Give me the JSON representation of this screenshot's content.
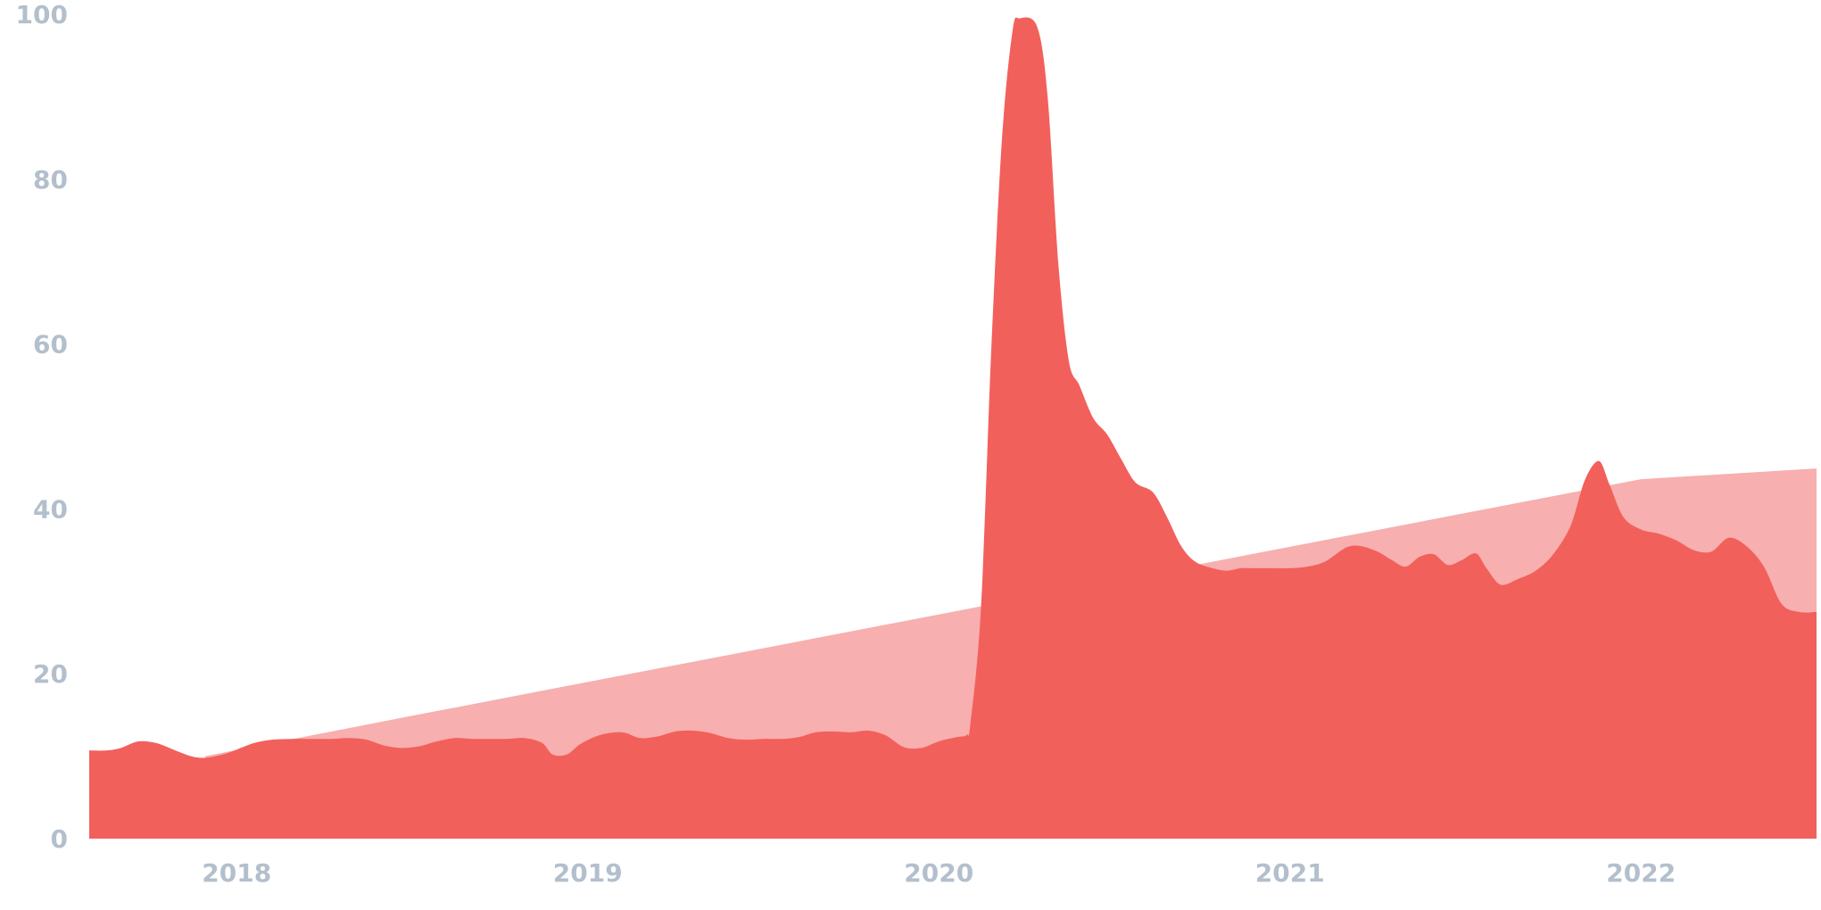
{
  "chart_data": {
    "type": "area",
    "title": "",
    "xlabel": "",
    "ylabel": "",
    "ylim": [
      0,
      100
    ],
    "xlim": [
      2017.58,
      2022.5
    ],
    "y_ticks": [
      "0",
      "20",
      "40",
      "60",
      "80",
      "100"
    ],
    "x_ticks": [
      "2018",
      "2019",
      "2020",
      "2021",
      "2022"
    ],
    "grid": false,
    "legend": "none",
    "colors": {
      "main_area": "#f2605c",
      "trend_area": "#f7afaf",
      "tick_text": "#b3bfcc"
    },
    "series": [
      {
        "values": [
          [
            2017.58,
            10.7
          ],
          [
            2017.63,
            10.7
          ],
          [
            2017.67,
            11.0
          ],
          [
            2017.72,
            11.8
          ],
          [
            2017.77,
            11.6
          ],
          [
            2017.82,
            10.8
          ],
          [
            2017.87,
            10.0
          ],
          [
            2017.91,
            9.8
          ],
          [
            2017.96,
            10.2
          ],
          [
            2018.0,
            10.8
          ],
          [
            2018.05,
            11.6
          ],
          [
            2018.1,
            12.0
          ],
          [
            2018.16,
            12.1
          ],
          [
            2018.21,
            12.1
          ],
          [
            2018.27,
            12.1
          ],
          [
            2018.32,
            12.2
          ],
          [
            2018.37,
            12.0
          ],
          [
            2018.42,
            11.3
          ],
          [
            2018.47,
            11.0
          ],
          [
            2018.52,
            11.2
          ],
          [
            2018.57,
            11.8
          ],
          [
            2018.62,
            12.2
          ],
          [
            2018.67,
            12.1
          ],
          [
            2018.72,
            12.1
          ],
          [
            2018.77,
            12.1
          ],
          [
            2018.82,
            12.2
          ],
          [
            2018.87,
            11.6
          ],
          [
            2018.9,
            10.2
          ],
          [
            2018.94,
            10.2
          ],
          [
            2018.98,
            11.5
          ],
          [
            2019.03,
            12.5
          ],
          [
            2019.08,
            12.9
          ],
          [
            2019.11,
            12.8
          ],
          [
            2019.15,
            12.2
          ],
          [
            2019.2,
            12.4
          ],
          [
            2019.25,
            13.0
          ],
          [
            2019.3,
            13.1
          ],
          [
            2019.35,
            12.8
          ],
          [
            2019.4,
            12.2
          ],
          [
            2019.45,
            12.0
          ],
          [
            2019.5,
            12.1
          ],
          [
            2019.55,
            12.1
          ],
          [
            2019.6,
            12.3
          ],
          [
            2019.65,
            12.9
          ],
          [
            2019.7,
            13.0
          ],
          [
            2019.75,
            12.9
          ],
          [
            2019.8,
            13.1
          ],
          [
            2019.85,
            12.5
          ],
          [
            2019.9,
            11.1
          ],
          [
            2019.95,
            11.0
          ],
          [
            2020.0,
            11.8
          ],
          [
            2020.05,
            12.3
          ],
          [
            2020.08,
            12.6
          ],
          [
            2020.09,
            14.0
          ],
          [
            2020.12,
            28.0
          ],
          [
            2020.15,
            60.0
          ],
          [
            2020.18,
            85.0
          ],
          [
            2020.21,
            98.0
          ],
          [
            2020.23,
            99.5
          ],
          [
            2020.28,
            98.5
          ],
          [
            2020.31,
            90.0
          ],
          [
            2020.34,
            70.0
          ],
          [
            2020.37,
            58.0
          ],
          [
            2020.4,
            55.0
          ],
          [
            2020.44,
            51.0
          ],
          [
            2020.48,
            49.0
          ],
          [
            2020.52,
            46.0
          ],
          [
            2020.56,
            43.2
          ],
          [
            2020.61,
            42.0
          ],
          [
            2020.65,
            39.0
          ],
          [
            2020.69,
            35.5
          ],
          [
            2020.73,
            33.6
          ],
          [
            2020.78,
            32.8
          ],
          [
            2020.82,
            32.5
          ],
          [
            2020.86,
            32.8
          ],
          [
            2020.9,
            32.8
          ],
          [
            2020.95,
            32.8
          ],
          [
            2021.0,
            32.8
          ],
          [
            2021.05,
            33.0
          ],
          [
            2021.1,
            33.6
          ],
          [
            2021.16,
            35.3
          ],
          [
            2021.2,
            35.5
          ],
          [
            2021.25,
            34.8
          ],
          [
            2021.29,
            33.8
          ],
          [
            2021.33,
            33.0
          ],
          [
            2021.37,
            34.2
          ],
          [
            2021.41,
            34.5
          ],
          [
            2021.45,
            33.2
          ],
          [
            2021.49,
            33.8
          ],
          [
            2021.53,
            34.6
          ],
          [
            2021.56,
            32.8
          ],
          [
            2021.6,
            30.8
          ],
          [
            2021.65,
            31.5
          ],
          [
            2021.7,
            32.5
          ],
          [
            2021.75,
            34.5
          ],
          [
            2021.8,
            38.0
          ],
          [
            2021.84,
            43.5
          ],
          [
            2021.88,
            45.8
          ],
          [
            2021.91,
            43.0
          ],
          [
            2021.95,
            39.0
          ],
          [
            2022.0,
            37.5
          ],
          [
            2022.05,
            37.0
          ],
          [
            2022.1,
            36.2
          ],
          [
            2022.15,
            35.0
          ],
          [
            2022.2,
            34.8
          ],
          [
            2022.25,
            36.5
          ],
          [
            2022.3,
            35.5
          ],
          [
            2022.35,
            33.0
          ],
          [
            2022.4,
            28.5
          ],
          [
            2022.45,
            27.5
          ],
          [
            2022.5,
            27.5
          ]
        ]
      },
      {
        "values": [
          [
            2017.91,
            10.0
          ],
          [
            2018.5,
            14.9
          ],
          [
            2019.0,
            19.0
          ],
          [
            2019.5,
            23.1
          ],
          [
            2020.0,
            27.2
          ],
          [
            2020.5,
            31.3
          ],
          [
            2021.0,
            35.4
          ],
          [
            2021.5,
            39.5
          ],
          [
            2022.0,
            43.6
          ],
          [
            2022.5,
            44.9
          ]
        ]
      }
    ]
  }
}
